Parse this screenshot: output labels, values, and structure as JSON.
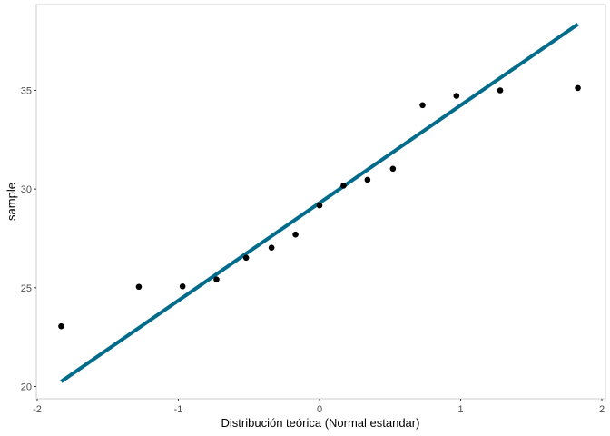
{
  "chart_data": {
    "type": "scatter",
    "title": "",
    "xlabel": "Distribución teórica (Normal estandar)",
    "ylabel": "sample",
    "xlim": [
      -2,
      2
    ],
    "ylim": [
      20,
      39
    ],
    "x_ticks": [
      -2,
      -1,
      0,
      1,
      2
    ],
    "x_tick_labels": [
      "-2",
      "-1",
      "0",
      "1",
      "2"
    ],
    "y_ticks": [
      20,
      25,
      30,
      35
    ],
    "y_tick_labels": [
      "20",
      "25",
      "30",
      "35"
    ],
    "grid": false,
    "points_color": "#000000",
    "line_color": "#006b8a",
    "points": [
      {
        "x": -1.83,
        "y": 23.05
      },
      {
        "x": -1.28,
        "y": 25.05
      },
      {
        "x": -0.97,
        "y": 25.07
      },
      {
        "x": -0.73,
        "y": 25.42
      },
      {
        "x": -0.52,
        "y": 26.52
      },
      {
        "x": -0.34,
        "y": 27.03
      },
      {
        "x": -0.17,
        "y": 27.7
      },
      {
        "x": 0.0,
        "y": 29.17
      },
      {
        "x": 0.17,
        "y": 30.17
      },
      {
        "x": 0.34,
        "y": 30.47
      },
      {
        "x": 0.52,
        "y": 31.03
      },
      {
        "x": 0.73,
        "y": 34.25
      },
      {
        "x": 0.97,
        "y": 34.72
      },
      {
        "x": 1.28,
        "y": 35.0
      },
      {
        "x": 1.83,
        "y": 35.12
      }
    ],
    "reference_line": {
      "x": [
        -1.83,
        1.83
      ],
      "y": [
        20.25,
        38.35
      ]
    }
  }
}
